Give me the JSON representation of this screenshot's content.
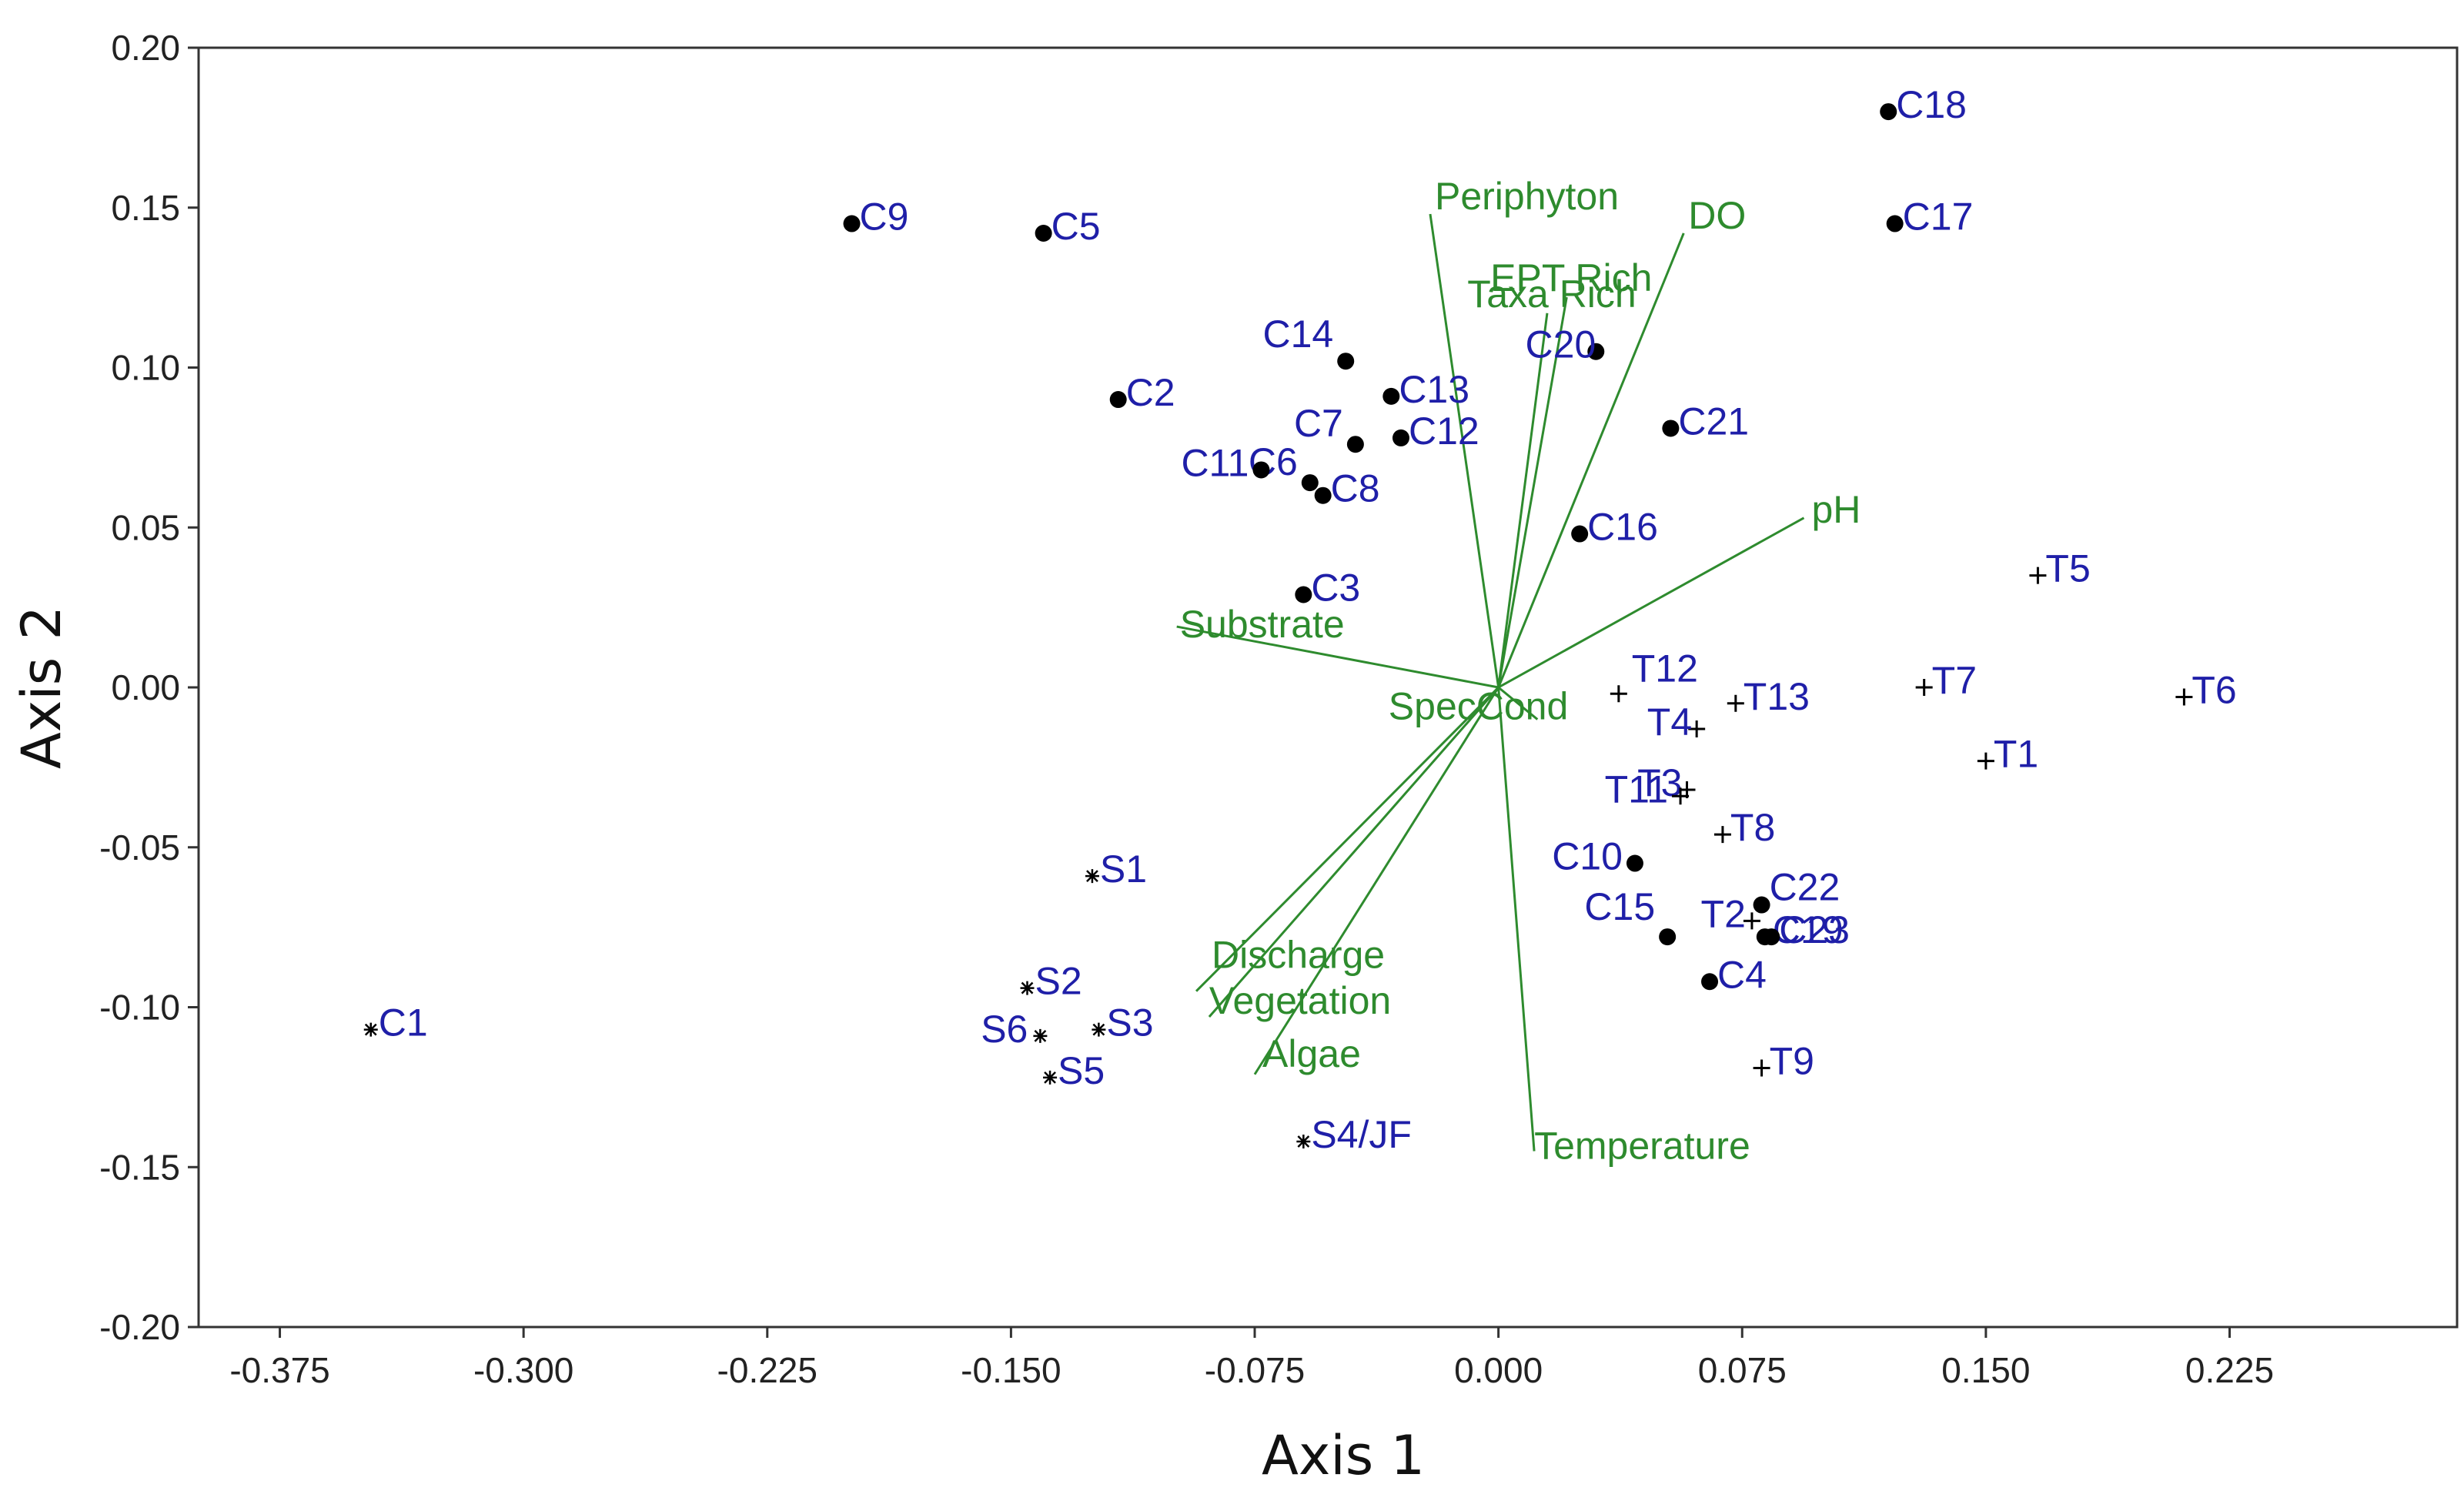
{
  "chart_data": {
    "type": "scatter",
    "title": "",
    "xlabel": "Axis 1",
    "ylabel": "Axis 2",
    "xlim": [
      -0.4,
      0.295
    ],
    "ylim": [
      -0.2,
      0.2
    ],
    "x_ticks": [
      "-0.375",
      "-0.300",
      "-0.225",
      "-0.150",
      "-0.075",
      "0.000",
      "0.075",
      "0.150",
      "0.225"
    ],
    "y_ticks": [
      "0.20",
      "0.15",
      "0.10",
      "0.05",
      "0.00",
      "-0.05",
      "-0.10",
      "-0.15",
      "-0.20"
    ],
    "colors": {
      "site_label": "#1f1fa8",
      "vector": "#2e8b2e",
      "marker": "#000000",
      "frame": "#333333"
    },
    "series": [
      {
        "name": "C",
        "marker": "dot",
        "points": [
          {
            "label": "C1",
            "x": -0.347,
            "y": -0.107,
            "marker": "star"
          },
          {
            "label": "C2",
            "x": -0.117,
            "y": 0.09
          },
          {
            "label": "C3",
            "x": -0.06,
            "y": 0.029
          },
          {
            "label": "C4",
            "x": 0.065,
            "y": -0.092
          },
          {
            "label": "C5",
            "x": -0.14,
            "y": 0.142
          },
          {
            "label": "C6",
            "x": -0.058,
            "y": 0.064
          },
          {
            "label": "C7",
            "x": -0.044,
            "y": 0.076
          },
          {
            "label": "C8",
            "x": -0.054,
            "y": 0.06
          },
          {
            "label": "C9",
            "x": -0.199,
            "y": 0.145
          },
          {
            "label": "C10",
            "x": 0.042,
            "y": -0.055
          },
          {
            "label": "C11",
            "x": -0.073,
            "y": 0.068
          },
          {
            "label": "C12",
            "x": -0.03,
            "y": 0.078
          },
          {
            "label": "C13",
            "x": -0.033,
            "y": 0.091
          },
          {
            "label": "C14",
            "x": -0.047,
            "y": 0.102
          },
          {
            "label": "C15",
            "x": 0.052,
            "y": -0.078
          },
          {
            "label": "C16",
            "x": 0.025,
            "y": 0.048
          },
          {
            "label": "C17",
            "x": 0.122,
            "y": 0.145
          },
          {
            "label": "C18",
            "x": 0.12,
            "y": 0.18
          },
          {
            "label": "C19",
            "x": 0.082,
            "y": -0.078
          },
          {
            "label": "C20",
            "x": 0.03,
            "y": 0.105
          },
          {
            "label": "C21",
            "x": 0.053,
            "y": 0.081
          },
          {
            "label": "C22",
            "x": 0.081,
            "y": -0.068
          },
          {
            "label": "C23",
            "x": 0.084,
            "y": -0.078
          }
        ]
      },
      {
        "name": "T",
        "marker": "plus",
        "points": [
          {
            "label": "T1",
            "x": 0.15,
            "y": -0.023
          },
          {
            "label": "T2",
            "x": 0.078,
            "y": -0.073
          },
          {
            "label": "T3",
            "x": 0.058,
            "y": -0.032
          },
          {
            "label": "T4",
            "x": 0.061,
            "y": -0.013
          },
          {
            "label": "T5",
            "x": 0.166,
            "y": 0.035
          },
          {
            "label": "T6",
            "x": 0.211,
            "y": -0.003
          },
          {
            "label": "T7",
            "x": 0.131,
            "y": 0.0
          },
          {
            "label": "T8",
            "x": 0.069,
            "y": -0.046
          },
          {
            "label": "T9",
            "x": 0.081,
            "y": -0.119
          },
          {
            "label": "T11",
            "x": 0.056,
            "y": -0.034
          },
          {
            "label": "T12",
            "x": 0.037,
            "y": -0.002
          },
          {
            "label": "T13",
            "x": 0.073,
            "y": -0.005
          }
        ]
      },
      {
        "name": "S",
        "marker": "star",
        "points": [
          {
            "label": "S1",
            "x": -0.125,
            "y": -0.059
          },
          {
            "label": "S2",
            "x": -0.145,
            "y": -0.094
          },
          {
            "label": "S3",
            "x": -0.123,
            "y": -0.107
          },
          {
            "label": "S4/JF",
            "x": -0.06,
            "y": -0.142
          },
          {
            "label": "S5",
            "x": -0.138,
            "y": -0.122
          },
          {
            "label": "S6",
            "x": -0.141,
            "y": -0.109
          }
        ]
      }
    ],
    "vectors": [
      {
        "label": "Periphyton",
        "x": -0.021,
        "y": 0.148
      },
      {
        "label": "DO",
        "x": 0.057,
        "y": 0.142
      },
      {
        "label": "EPT Rich",
        "x": 0.021,
        "y": 0.122
      },
      {
        "label": "Taxa Rich",
        "x": 0.015,
        "y": 0.117
      },
      {
        "label": "pH",
        "x": 0.094,
        "y": 0.053
      },
      {
        "label": "Substrate",
        "x": -0.099,
        "y": 0.019
      },
      {
        "label": "SpecCond",
        "x": 0.012,
        "y": -0.01
      },
      {
        "label": "Discharge",
        "x": -0.093,
        "y": -0.095
      },
      {
        "label": "Vegetation",
        "x": -0.089,
        "y": -0.103
      },
      {
        "label": "Algae",
        "x": -0.075,
        "y": -0.121
      },
      {
        "label": "Temperature",
        "x": 0.011,
        "y": -0.145
      }
    ]
  }
}
